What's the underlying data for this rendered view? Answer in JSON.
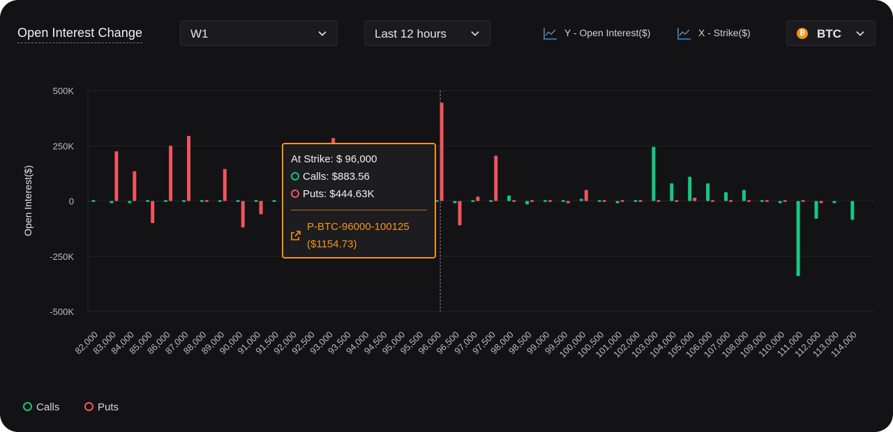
{
  "header": {
    "title": "Open Interest Change",
    "expiry_select": "W1",
    "period_select": "Last 12 hours",
    "y_toggle": "Y - Open Interest($)",
    "x_toggle": "X - Strike($)",
    "asset_select": "BTC",
    "asset_icon": "bitcoin-icon"
  },
  "tooltip": {
    "strike": "At Strike: $ 96,000",
    "calls": "Calls: $883.56",
    "puts": "Puts: $444.63K",
    "instrument": "P-BTC-96000-100125",
    "instrument_price": "($1154.73)"
  },
  "legend": [
    "Calls",
    "Puts"
  ],
  "colors": {
    "calls": "#16c784",
    "puts": "#f0545d",
    "accent": "#f7931a"
  },
  "chart_data": {
    "type": "bar",
    "title": "",
    "ylabel": "Open Interest($)",
    "xlabel": "",
    "ylim": [
      -500000,
      500000
    ],
    "yticks": [
      "500K",
      "250K",
      "0",
      "-250K",
      "-500K"
    ],
    "ytick_values": [
      500000,
      250000,
      0,
      -250000,
      -500000
    ],
    "categories": [
      "82,000",
      "83,000",
      "84,000",
      "85,000",
      "86,000",
      "87,000",
      "88,000",
      "89,000",
      "90,000",
      "91,000",
      "91,500",
      "92,000",
      "92,500",
      "93,000",
      "93,500",
      "94,000",
      "94,500",
      "95,000",
      "95,500",
      "96,000",
      "96,500",
      "97,000",
      "97,500",
      "98,000",
      "98,500",
      "99,000",
      "99,500",
      "100,000",
      "100,500",
      "101,000",
      "102,000",
      "103,000",
      "104,000",
      "105,000",
      "106,000",
      "107,000",
      "108,000",
      "109,000",
      "110,000",
      "111,000",
      "112,000",
      "113,000",
      "114,000"
    ],
    "hover_category": "96,000",
    "series": [
      {
        "name": "Calls",
        "values": [
          5000,
          -10000,
          -10000,
          5000,
          5000,
          5000,
          5000,
          5000,
          5000,
          5000,
          5000,
          0,
          0,
          0,
          0,
          0,
          0,
          0,
          0,
          884,
          -10000,
          5000,
          5000,
          25000,
          -15000,
          5000,
          5000,
          10000,
          5000,
          -10000,
          5000,
          245000,
          80000,
          110000,
          80000,
          40000,
          50000,
          5000,
          -10000,
          -340000,
          -80000,
          -10000,
          -85000
        ]
      },
      {
        "name": "Puts",
        "values": [
          0,
          225000,
          135000,
          -100000,
          250000,
          295000,
          5000,
          145000,
          -120000,
          -60000,
          0,
          0,
          0,
          285000,
          0,
          0,
          0,
          0,
          0,
          444630,
          -110000,
          20000,
          205000,
          5000,
          5000,
          5000,
          -10000,
          50000,
          5000,
          5000,
          5000,
          5000,
          5000,
          15000,
          5000,
          5000,
          5000,
          5000,
          5000,
          5000,
          -10000,
          0,
          0
        ]
      }
    ],
    "grid": true,
    "legend_position": "bottom-left"
  }
}
